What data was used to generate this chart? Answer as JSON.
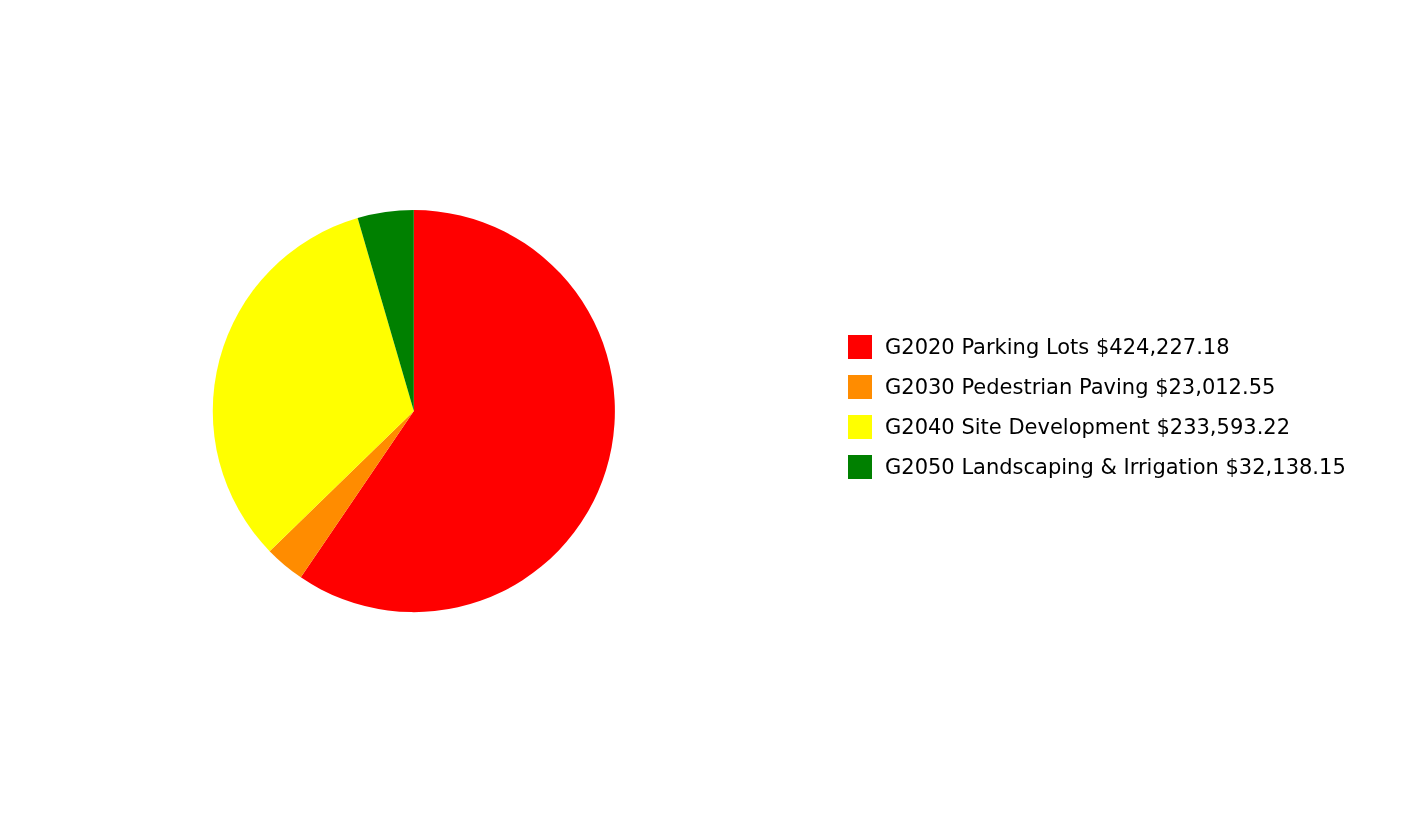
{
  "chart_data": {
    "type": "pie",
    "categories": [
      "G2020 Parking Lots",
      "G2030 Pedestrian Paving",
      "G2040 Site Development",
      "G2050 Landscaping & Irrigation"
    ],
    "values": [
      424227.18,
      23012.55,
      233593.22,
      32138.15
    ],
    "value_labels": [
      "$424,227.18",
      "$23,012.55",
      "$233,593.22",
      "$32,138.15"
    ],
    "colors": [
      "#ff0000",
      "#ff8c00",
      "#ffff00",
      "#008000"
    ],
    "legend": "right"
  }
}
